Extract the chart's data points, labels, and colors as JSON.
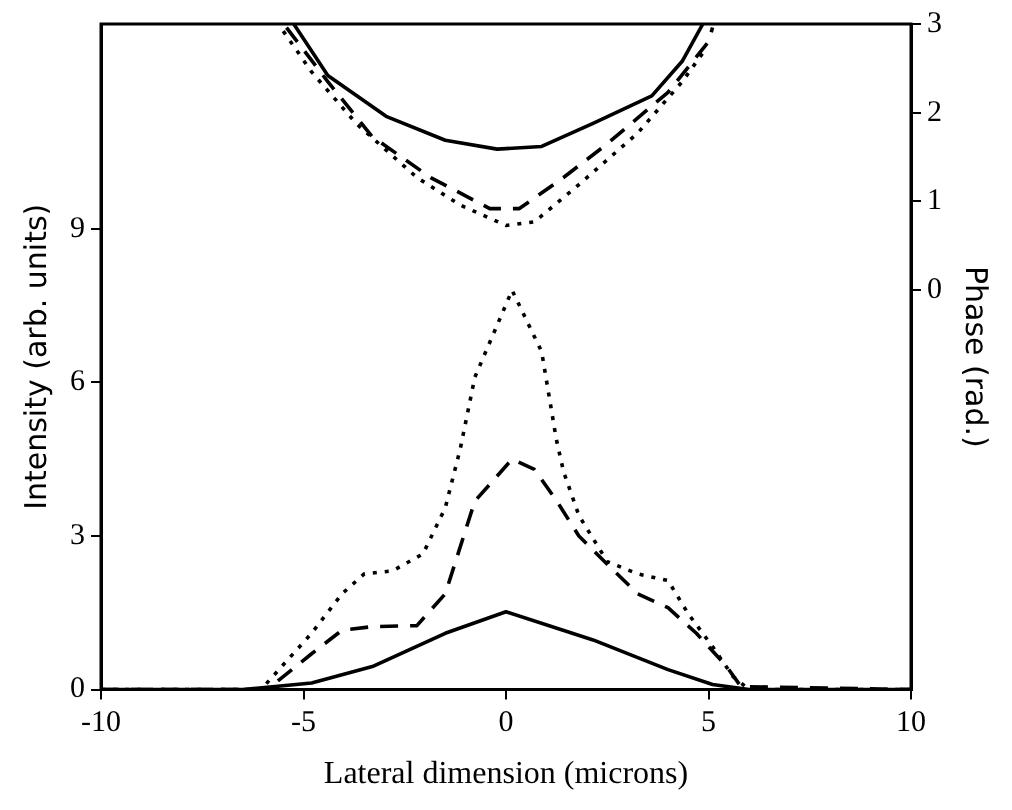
{
  "chart_data": {
    "type": "line",
    "xlabel": "Lateral dimension (microns)",
    "ylabel": "Intensity (arb. units)",
    "y2label": "Phase (rad.)",
    "xlim": [
      -10,
      10
    ],
    "xticks": [
      -10,
      -5,
      0,
      5,
      10
    ],
    "ylim": [
      0,
      13
    ],
    "yticks": [
      0,
      3,
      6,
      9
    ],
    "y2lim": [
      -4.5,
      3
    ],
    "y2ticks": [
      0,
      1,
      2,
      3
    ],
    "grid": false,
    "legend": false,
    "marker": "none",
    "series": [
      {
        "color": "#000000",
        "line_style": "solid",
        "axis": "y",
        "x": [
          -10,
          -6.5,
          -4.8,
          -3.3,
          -1.5,
          0,
          2.15,
          4,
          5.1,
          6,
          10
        ],
        "values": [
          0,
          0,
          0.13,
          0.45,
          1.1,
          1.52,
          0.97,
          0.39,
          0.1,
          0,
          0
        ]
      },
      {
        "color": "#000000",
        "line_style": "dashed",
        "axis": "y",
        "x": [
          -10,
          -5.9,
          -4.8,
          -4.05,
          -3.3,
          -2.2,
          -1.5,
          -0.77,
          0.15,
          0.7,
          1.24,
          1.8,
          2.5,
          3.25,
          4,
          4.7,
          5.45,
          5.8,
          10
        ],
        "values": [
          0,
          0,
          0.7,
          1.16,
          1.23,
          1.25,
          1.87,
          3.68,
          4.5,
          4.3,
          3.7,
          3,
          2.45,
          1.87,
          1.6,
          1.1,
          0.45,
          0.06,
          0
        ]
      },
      {
        "color": "#000000",
        "line_style": "dotted",
        "axis": "y",
        "x": [
          -10,
          -6.05,
          -4.8,
          -4.05,
          -3.5,
          -2.8,
          -2.05,
          -1.5,
          -1.13,
          -0.77,
          0.15,
          0.88,
          1.24,
          1.42,
          1.8,
          2.5,
          3.25,
          4,
          4.5,
          5.1,
          5.6,
          6,
          10
        ],
        "values": [
          0,
          0,
          1.1,
          1.87,
          2.26,
          2.32,
          2.65,
          3.55,
          4.7,
          6.1,
          7.8,
          6.6,
          4.9,
          4.26,
          3.4,
          2.5,
          2.26,
          2.13,
          1.48,
          0.84,
          0.26,
          0,
          0
        ]
      },
      {
        "color": "#000000",
        "line_style": "solid",
        "axis": "y2",
        "x": [
          -5.24,
          -4.4,
          -2.96,
          -1.5,
          -0.22,
          0.88,
          2.15,
          3.6,
          4.35,
          4.86
        ],
        "values": [
          3,
          2.42,
          1.96,
          1.69,
          1.59,
          1.62,
          1.88,
          2.19,
          2.58,
          3
        ]
      },
      {
        "color": "#000000",
        "line_style": "dashed",
        "axis": "y2",
        "x": [
          -5.42,
          -4.4,
          -3.3,
          -1.86,
          -0.4,
          0.33,
          1.42,
          2.5,
          4,
          5,
          5.1
        ],
        "values": [
          2.96,
          2.35,
          1.73,
          1.27,
          0.92,
          0.92,
          1.27,
          1.65,
          2.23,
          2.8,
          2.96
        ]
      },
      {
        "color": "#000000",
        "line_style": "dotted",
        "axis": "y2",
        "x": [
          -5.5,
          -4.8,
          -3.7,
          -2.2,
          -1.13,
          0,
          0.7,
          1.8,
          3.25,
          4.35,
          4.9
        ],
        "values": [
          2.92,
          2.46,
          1.88,
          1.27,
          0.96,
          0.73,
          0.77,
          1.19,
          1.77,
          2.35,
          2.7
        ]
      }
    ]
  }
}
